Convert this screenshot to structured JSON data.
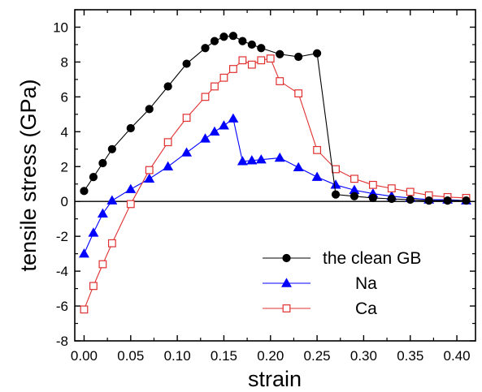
{
  "chart_data": {
    "type": "line",
    "xlabel": "strain",
    "ylabel": "tensile stress (GPa)",
    "xlim": [
      -0.01,
      0.42
    ],
    "ylim": [
      -8,
      11
    ],
    "xticks": [
      0.0,
      0.05,
      0.1,
      0.15,
      0.2,
      0.25,
      0.3,
      0.35,
      0.4
    ],
    "xtick_labels": [
      "0.00",
      "0.05",
      "0.10",
      "0.15",
      "0.20",
      "0.25",
      "0.30",
      "0.35",
      "0.40"
    ],
    "yticks": [
      -8,
      -6,
      -4,
      -2,
      0,
      2,
      4,
      6,
      8,
      10
    ],
    "ytick_labels": [
      "-8",
      "-6",
      "-4",
      "-2",
      "0",
      "2",
      "4",
      "6",
      "8",
      "10"
    ],
    "zero_line": true,
    "grid": false,
    "legend_position": "bottom-right",
    "series": [
      {
        "name": "the clean GB",
        "color": "#000000",
        "marker": "circle-filled",
        "x": [
          0.0,
          0.01,
          0.02,
          0.03,
          0.05,
          0.07,
          0.09,
          0.11,
          0.13,
          0.14,
          0.15,
          0.16,
          0.17,
          0.18,
          0.19,
          0.21,
          0.23,
          0.25,
          0.27,
          0.29,
          0.31,
          0.33,
          0.35,
          0.37,
          0.39,
          0.41
        ],
        "y": [
          0.6,
          1.4,
          2.2,
          3.0,
          4.2,
          5.3,
          6.6,
          7.9,
          8.8,
          9.2,
          9.45,
          9.5,
          9.2,
          9.0,
          8.8,
          8.45,
          8.3,
          8.5,
          0.4,
          0.3,
          0.2,
          0.15,
          0.1,
          0.05,
          0.05,
          0.05
        ]
      },
      {
        "name": "Na",
        "color": "#0000ff",
        "marker": "triangle-filled",
        "x": [
          0.0,
          0.01,
          0.02,
          0.03,
          0.05,
          0.07,
          0.09,
          0.11,
          0.13,
          0.14,
          0.15,
          0.16,
          0.17,
          0.18,
          0.19,
          0.21,
          0.23,
          0.25,
          0.27,
          0.29,
          0.31,
          0.33,
          0.35,
          0.37,
          0.39,
          0.41
        ],
        "y": [
          -3.0,
          -1.8,
          -0.7,
          0.05,
          0.7,
          1.3,
          2.0,
          2.8,
          3.6,
          4.0,
          4.35,
          4.75,
          2.3,
          2.35,
          2.4,
          2.5,
          1.95,
          1.4,
          0.95,
          0.65,
          0.45,
          0.3,
          0.2,
          0.1,
          0.1,
          0.05
        ]
      },
      {
        "name": "Ca",
        "color": "#e03030",
        "marker": "square-open",
        "x": [
          0.0,
          0.01,
          0.02,
          0.03,
          0.05,
          0.07,
          0.09,
          0.11,
          0.13,
          0.14,
          0.15,
          0.16,
          0.17,
          0.18,
          0.19,
          0.2,
          0.21,
          0.23,
          0.25,
          0.27,
          0.29,
          0.31,
          0.33,
          0.35,
          0.37,
          0.39,
          0.41
        ],
        "y": [
          -6.2,
          -4.85,
          -3.6,
          -2.4,
          -0.15,
          1.8,
          3.4,
          4.8,
          6.0,
          6.6,
          7.1,
          7.6,
          8.1,
          7.85,
          8.1,
          8.2,
          6.9,
          6.2,
          2.95,
          1.85,
          1.3,
          0.95,
          0.75,
          0.55,
          0.35,
          0.25,
          0.2
        ]
      }
    ]
  }
}
